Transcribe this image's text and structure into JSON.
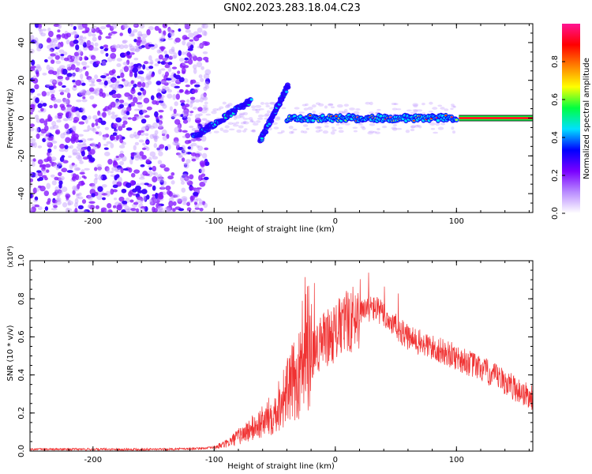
{
  "title": "GN02.2023.283.18.04.C23",
  "colors": {
    "snr_line": "#f03232",
    "colormap": [
      "#ffffff",
      "#b98cff",
      "#7a00ff",
      "#0000ff",
      "#00e0ff",
      "#00ff40",
      "#ffff00",
      "#ff8000",
      "#ff0000",
      "#ff1493"
    ]
  },
  "chart_data": [
    {
      "type": "heatmap",
      "name": "spectrogram",
      "xlabel": "Height of straight line (km)",
      "ylabel": "Frequency (Hz)",
      "xlim": [
        -252,
        163
      ],
      "ylim": [
        -50,
        50
      ],
      "x_ticks": [
        -200,
        -100,
        0,
        100
      ],
      "y_ticks": [
        -40,
        -20,
        0,
        20,
        40
      ],
      "colorbar": {
        "label": "Normalized spectral amplitude",
        "range": [
          0,
          1
        ],
        "ticks": [
          "0.0",
          "0.2",
          "0.4",
          "0.6",
          "0.8"
        ]
      },
      "features": {
        "noise_region_x": [
          -252,
          -105
        ],
        "chirp_segments": [
          {
            "x": [
              -117,
              -70
            ],
            "y": [
              -10,
              9
            ]
          },
          {
            "x": [
              -62,
              -39
            ],
            "y": [
              -12,
              17
            ]
          }
        ],
        "stable_line": {
          "x": [
            -40,
            100
          ],
          "y": 0
        },
        "constant_line": {
          "x": [
            102,
            163
          ],
          "y": 0
        }
      }
    },
    {
      "type": "line",
      "name": "snr",
      "xlabel": "Height of straight line (km)",
      "ylabel": "SNR (10 * v/v)",
      "y_multiplier": "(x10⁴)",
      "xlim": [
        -252,
        163
      ],
      "ylim": [
        0,
        1.0
      ],
      "x_ticks": [
        -200,
        -100,
        0,
        100
      ],
      "y_ticks": [
        "0.0",
        "0.2",
        "0.4",
        "0.6",
        "0.8",
        "1.0"
      ],
      "series": [
        {
          "x": [
            -252,
            -220,
            -180,
            -140,
            -110,
            -100,
            -90,
            -80,
            -70,
            -60,
            -50,
            -45,
            -40,
            -35,
            -30,
            -25,
            -20,
            -15,
            -10,
            0,
            10,
            20,
            30,
            35,
            40,
            50,
            60,
            80,
            100,
            120,
            140,
            163
          ],
          "y": [
            0.01,
            0.01,
            0.01,
            0.01,
            0.015,
            0.02,
            0.04,
            0.08,
            0.12,
            0.16,
            0.22,
            0.28,
            0.33,
            0.38,
            0.42,
            0.47,
            0.52,
            0.56,
            0.6,
            0.64,
            0.7,
            0.73,
            0.76,
            0.75,
            0.72,
            0.66,
            0.6,
            0.55,
            0.5,
            0.44,
            0.37,
            0.28
          ]
        }
      ]
    }
  ]
}
